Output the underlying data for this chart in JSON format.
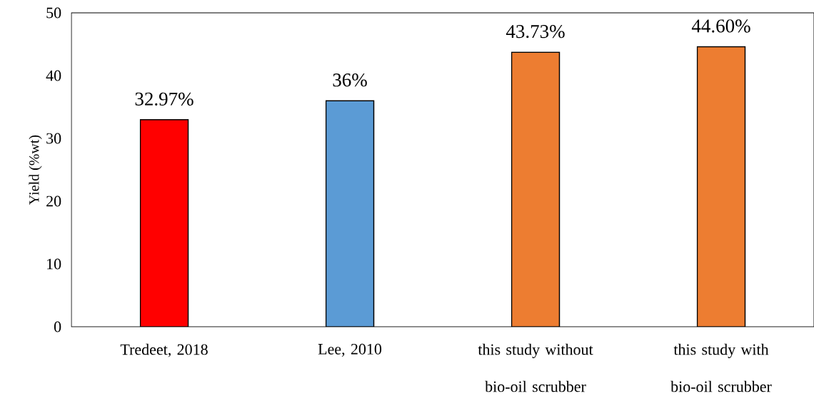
{
  "chart_data": {
    "type": "bar",
    "ylabel": "Yield (%wt)",
    "categories": [
      "Tredeet, 2018",
      "Lee, 2010",
      "this study without bio-oil scrubber",
      "this study with bio-oil scrubber"
    ],
    "values": [
      32.97,
      36,
      43.73,
      44.6
    ],
    "value_labels": [
      "32.97%",
      "36%",
      "43.73%",
      "44.60%"
    ],
    "colors": [
      "#ff0000",
      "#5b9bd5",
      "#ed7d31",
      "#ed7d31"
    ],
    "ylim": [
      0,
      50
    ],
    "yticks": [
      0,
      10,
      20,
      30,
      40,
      50
    ],
    "grid": false
  }
}
